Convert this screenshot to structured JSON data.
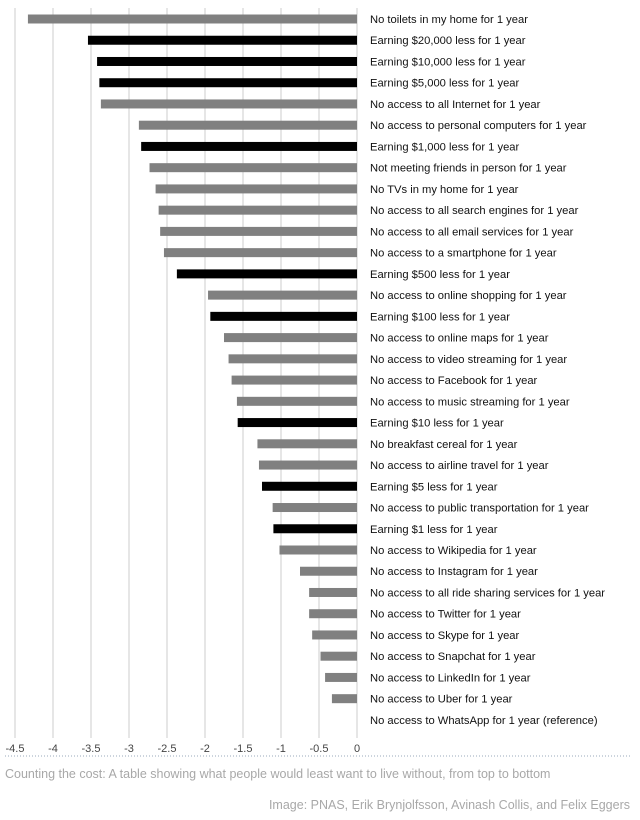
{
  "chart_data": {
    "type": "bar",
    "orientation": "horizontal",
    "categories": [
      "No toilets in my home for 1 year",
      "Earning $20,000 less for 1 year",
      "Earning $10,000 less for 1 year",
      "Earning $5,000 less for 1 year",
      "No access to all Internet for 1 year",
      "No access to personal computers for 1 year",
      "Earning $1,000 less for 1 year",
      "Not meeting friends in person for 1 year",
      "No TVs in my home for 1 year",
      "No access to all search engines for 1 year",
      "No access to all email services for 1 year",
      "No access to a smartphone for 1 year",
      "Earning $500 less for 1 year",
      "No access to online shopping for 1 year",
      "Earning $100 less for 1 year",
      "No access to online maps for 1 year",
      "No access to video streaming for 1 year",
      "No access to Facebook for 1 year",
      "No access to music streaming for 1 year",
      "Earning $10 less for 1 year",
      "No breakfast cereal for 1 year",
      "No access to airline travel for 1 year",
      "Earning $5 less for 1 year",
      "No access to public transportation for 1 year",
      "Earning $1 less for 1 year",
      "No access to Wikipedia for 1 year",
      "No access to Instagram for 1 year",
      "No access to all ride sharing services for 1 year",
      "No access to Twitter for 1 year",
      "No access to Skype for 1 year",
      "No access to Snapchat for 1 year",
      "No access to LinkedIn for 1 year",
      "No access to Uber for 1 year",
      "No access to WhatsApp for 1 year (reference)"
    ],
    "values": [
      -4.33,
      -3.54,
      -3.42,
      -3.39,
      -3.37,
      -2.87,
      -2.84,
      -2.73,
      -2.65,
      -2.61,
      -2.59,
      -2.54,
      -2.37,
      -1.96,
      -1.93,
      -1.75,
      -1.69,
      -1.65,
      -1.58,
      -1.57,
      -1.31,
      -1.29,
      -1.25,
      -1.11,
      -1.1,
      -1.02,
      -0.75,
      -0.63,
      -0.63,
      -0.59,
      -0.48,
      -0.42,
      -0.33,
      0
    ],
    "is_earning": [
      false,
      true,
      true,
      true,
      false,
      false,
      true,
      false,
      false,
      false,
      false,
      false,
      true,
      false,
      true,
      false,
      false,
      false,
      false,
      true,
      false,
      false,
      true,
      false,
      true,
      false,
      false,
      false,
      false,
      false,
      false,
      false,
      false,
      false
    ],
    "colors": {
      "earning": "#000000",
      "other": "#808080",
      "grid": "#dddddd"
    },
    "xlim": [
      -4.5,
      0
    ],
    "xticks": [
      "-4.5",
      "-4",
      "-3.5",
      "-3",
      "-2.5",
      "-2",
      "-1.5",
      "-1",
      "-0.5",
      "0"
    ],
    "grid": true,
    "legend": "none"
  },
  "caption": "Counting the cost: A table showing what people would least want to live without, from top to bottom",
  "source": "Image: PNAS, Erik Brynjolfsson, Avinash Collis, and Felix Eggers"
}
